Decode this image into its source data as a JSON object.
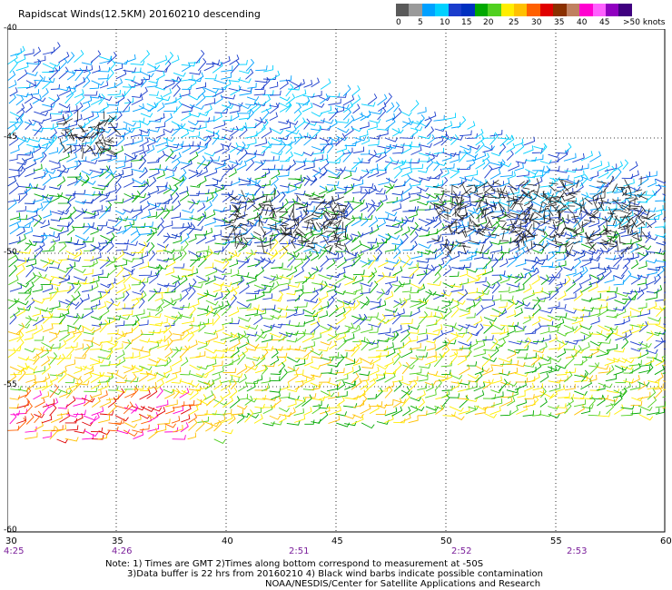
{
  "header": {
    "title": "Rapidscat Winds(12.5KM) 20160210 descending"
  },
  "colorbar": {
    "colors": [
      "#5a5a5a",
      "#9a9a9a",
      "#00a0ff",
      "#00d0ff",
      "#1a3ccc",
      "#0030c0",
      "#00a800",
      "#50d020",
      "#ffee00",
      "#ffc000",
      "#ff6000",
      "#e00000",
      "#8a3000",
      "#c08060",
      "#ff00d0",
      "#ff60ff",
      "#9000c0",
      "#400080"
    ],
    "ticks": [
      "0",
      "5",
      "10",
      "15",
      "20",
      "25",
      "30",
      "35",
      "40",
      "45",
      ">50 knots"
    ]
  },
  "axes": {
    "lat_labels": [
      "-40",
      "-45",
      "-50",
      "-55",
      "-60"
    ],
    "lon_labels": [
      "30",
      "35",
      "40",
      "45",
      "50",
      "55",
      "60"
    ],
    "time_labels": [
      "4:25",
      "4:26",
      "2:51",
      "2:52",
      "2:53"
    ]
  },
  "notes": {
    "line1": "Note: 1) Times are GMT 2)Times along bottom correspond to measurement at -50S",
    "line2": "3)Data buffer is 22 hrs from 20160210 4) Black wind barbs indicate possible contamination",
    "line3": "NOAA/NESDIS/Center for Satellite Applications and Research"
  }
}
